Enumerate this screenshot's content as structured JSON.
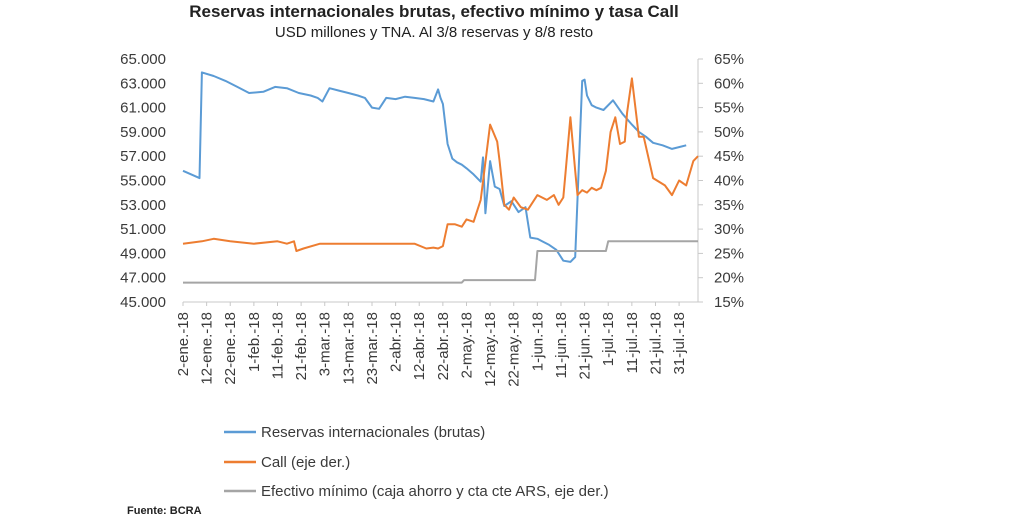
{
  "chart_data": {
    "type": "line",
    "title": "Reservas internacionales brutas, efectivo mínimo y tasa Call",
    "subtitle": "USD millones y TNA. Al 3/8 reservas y 8/8 resto",
    "x_tick_labels": [
      "2-ene.-18",
      "12-ene.-18",
      "22-ene.-18",
      "1-feb.-18",
      "11-feb.-18",
      "21-feb.-18",
      "3-mar.-18",
      "13-mar.-18",
      "23-mar.-18",
      "2-abr.-18",
      "12-abr.-18",
      "22-abr.-18",
      "2-may.-18",
      "12-may.-18",
      "22-may.-18",
      "1-jun.-18",
      "11-jun.-18",
      "21-jun.-18",
      "1-jul.-18",
      "11-jul.-18",
      "21-jul.-18",
      "31-jul.-18"
    ],
    "y_left": {
      "min": 45000,
      "max": 65000,
      "step": 2000,
      "tick_labels": [
        "45.000",
        "47.000",
        "49.000",
        "51.000",
        "53.000",
        "55.000",
        "57.000",
        "59.000",
        "61.000",
        "63.000",
        "65.000"
      ]
    },
    "y_right": {
      "min": 15,
      "max": 65,
      "step": 5,
      "tick_labels": [
        "15%",
        "20%",
        "25%",
        "30%",
        "35%",
        "40%",
        "45%",
        "50%",
        "55%",
        "60%",
        "65%"
      ]
    },
    "series": [
      {
        "name": "Reservas internacionales (brutas)",
        "axis": "left",
        "color": "#5b9bd5",
        "x": [
          "2-ene.-18",
          "9-ene.-18",
          "10-ene.-18",
          "15-ene.-18",
          "20-ene.-18",
          "25-ene.-18",
          "30-ene.-18",
          "5-feb.-18",
          "10-feb.-18",
          "15-feb.-18",
          "20-feb.-18",
          "25-feb.-18",
          "28-feb.-18",
          "2-mar.-18",
          "5-mar.-18",
          "9-mar.-18",
          "13-mar.-18",
          "17-mar.-18",
          "20-mar.-18",
          "23-mar.-18",
          "26-mar.-18",
          "29-mar.-18",
          "2-abr.-18",
          "6-abr.-18",
          "10-abr.-18",
          "14-abr.-18",
          "18-abr.-18",
          "20-abr.-18",
          "21-abr.-18",
          "22-abr.-18",
          "24-abr.-18",
          "26-abr.-18",
          "28-abr.-18",
          "30-abr.-18",
          "2-may.-18",
          "5-may.-18",
          "8-may.-18",
          "9-may.-18",
          "10-may.-18",
          "12-may.-18",
          "14-may.-18",
          "16-may.-18",
          "18-may.-18",
          "21-may.-18",
          "24-may.-18",
          "27-may.-18",
          "29-may.-18",
          "1-jun.-18",
          "3-jun.-18",
          "6-jun.-18",
          "9-jun.-18",
          "12-jun.-18",
          "15-jun.-18",
          "17-jun.-18",
          "20-jun.-18",
          "21-jun.-18",
          "22-jun.-18",
          "24-jun.-18",
          "26-jun.-18",
          "29-jun.-18",
          "3-jul.-18",
          "7-jul.-18",
          "11-jul.-18",
          "14-jul.-18",
          "17-jul.-18",
          "20-jul.-18",
          "24-jul.-18",
          "28-jul.-18",
          "1-ago.-18",
          "3-ago.-18"
        ],
        "values": [
          55800,
          55200,
          63900,
          63600,
          63200,
          62700,
          62200,
          62300,
          62700,
          62600,
          62200,
          62000,
          61800,
          61500,
          62600,
          62400,
          62200,
          62000,
          61800,
          61000,
          60900,
          61800,
          61700,
          61900,
          61800,
          61700,
          61500,
          62500,
          61800,
          61300,
          58000,
          56800,
          56500,
          56300,
          56000,
          55500,
          54900,
          56900,
          52300,
          56600,
          54500,
          54300,
          52900,
          53300,
          52400,
          52800,
          50300,
          50200,
          50000,
          49700,
          49300,
          48400,
          48300,
          48700,
          63200,
          63300,
          62000,
          61200,
          61000,
          60800,
          61600,
          60500,
          59600,
          59000,
          58600,
          58100,
          57900,
          57600,
          57800,
          57900
        ]
      },
      {
        "name": "Call (eje der.)",
        "axis": "right",
        "color": "#ed7d31",
        "x": [
          "2-ene.-18",
          "10-ene.-18",
          "15-ene.-18",
          "22-ene.-18",
          "1-feb.-18",
          "11-feb.-18",
          "15-feb.-18",
          "18-feb.-18",
          "19-feb.-18",
          "22-feb.-18",
          "1-mar.-18",
          "10-mar.-18",
          "20-mar.-18",
          "1-abr.-18",
          "10-abr.-18",
          "15-abr.-18",
          "18-abr.-18",
          "20-abr.-18",
          "22-abr.-18",
          "24-abr.-18",
          "27-abr.-18",
          "30-abr.-18",
          "2-may.-18",
          "5-may.-18",
          "8-may.-18",
          "12-may.-18",
          "15-may.-18",
          "16-may.-18",
          "18-may.-18",
          "20-may.-18",
          "22-may.-18",
          "25-may.-18",
          "28-may.-18",
          "1-jun.-18",
          "5-jun.-18",
          "8-jun.-18",
          "10-jun.-18",
          "12-jun.-18",
          "13-jun.-18",
          "15-jun.-18",
          "17-jun.-18",
          "18-jun.-18",
          "20-jun.-18",
          "22-jun.-18",
          "24-jun.-18",
          "26-jun.-18",
          "28-jun.-18",
          "30-jun.-18",
          "2-jul.-18",
          "4-jul.-18",
          "6-jul.-18",
          "8-jul.-18",
          "9-jul.-18",
          "11-jul.-18",
          "14-jul.-18",
          "16-jul.-18",
          "20-jul.-18",
          "25-jul.-18",
          "28-jul.-18",
          "31-jul.-18",
          "3-ago.-18",
          "6-ago.-18",
          "8-ago.-18"
        ],
        "values": [
          27,
          27.5,
          28,
          27.5,
          27,
          27.5,
          27,
          27.5,
          25.5,
          26,
          27,
          27,
          27,
          27,
          27,
          26,
          26.2,
          26,
          26.5,
          31,
          31,
          30.5,
          32,
          31.5,
          36,
          51.5,
          48,
          44,
          35,
          34,
          36.5,
          34.5,
          34,
          37,
          36,
          37,
          35,
          36.5,
          42,
          53,
          42,
          37,
          38,
          37.5,
          38.5,
          38,
          38.5,
          42,
          50,
          53,
          47.5,
          48,
          54,
          61,
          49,
          49,
          40.5,
          39,
          37,
          40,
          39,
          44,
          45
        ]
      },
      {
        "name": "Efectivo mínimo (caja ahorro y cta cte ARS, eje der.)",
        "axis": "right",
        "color": "#a5a5a5",
        "x": [
          "2-ene.-18",
          "30-abr.-18",
          "1-may.-18",
          "31-may.-18",
          "1-jun.-18",
          "30-jun.-18",
          "1-jul.-18",
          "8-ago.-18"
        ],
        "values": [
          19,
          19,
          19.5,
          19.5,
          25.5,
          25.5,
          27.5,
          27.5
        ]
      }
    ],
    "legend_position": "bottom",
    "grid": false
  },
  "source": "Fuente: BCRA"
}
